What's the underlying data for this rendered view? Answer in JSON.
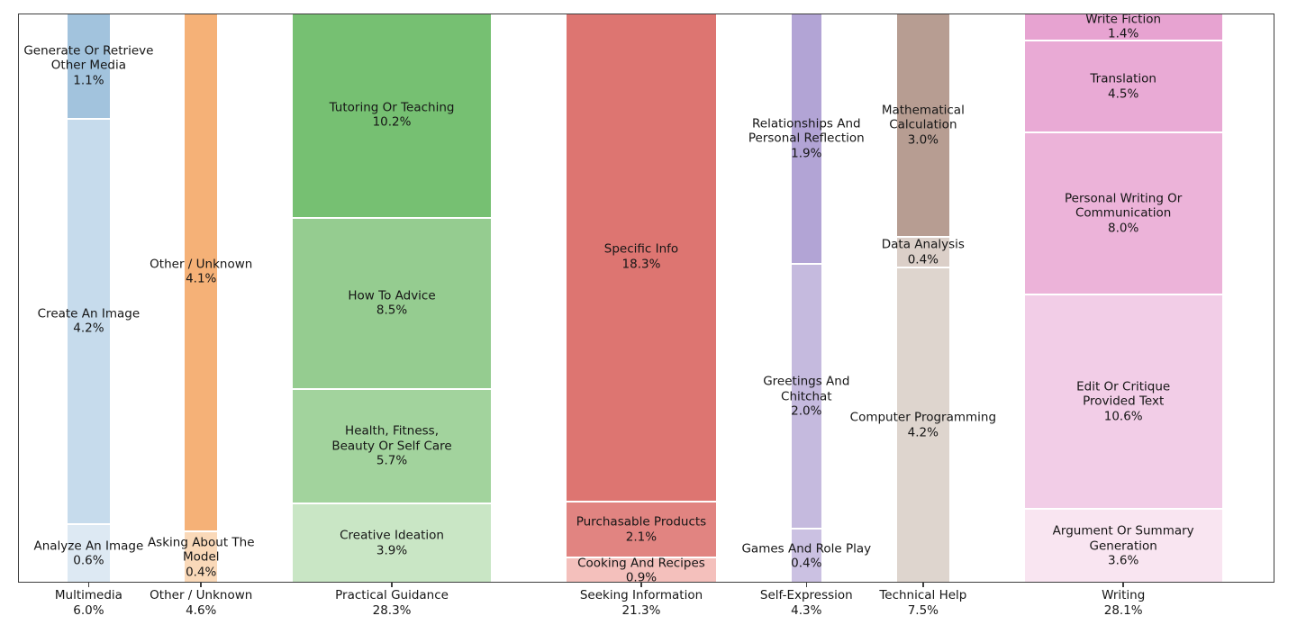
{
  "figure": {
    "background": "#ffffff",
    "text_color": "#161616",
    "spine_color": "#3e3e3e",
    "segment_gap_color": "#ffffff"
  },
  "chart_data": {
    "type": "bar",
    "variant": "marimekko-mosaic",
    "orientation": "vertical-stacked-normalized",
    "title": "",
    "xlabel": "",
    "ylabel": "",
    "grid": false,
    "legend": "none",
    "axis": {
      "frame": true,
      "bottom_ticks_at_bar_centers": true
    },
    "categories": [
      {
        "name": "Multimedia",
        "total": 6.0,
        "total_label": "6.0%",
        "segments": [
          {
            "label_lines": [
              "Generate Or Retrieve",
              "Other Media"
            ],
            "pct": 1.1,
            "pct_label": "1.1%",
            "color": "#a2c3dd"
          },
          {
            "label_lines": [
              "Create An Image"
            ],
            "pct": 4.2,
            "pct_label": "4.2%",
            "color": "#c6dbec"
          },
          {
            "label_lines": [
              "Analyze An Image"
            ],
            "pct": 0.6,
            "pct_label": "0.6%",
            "color": "#dde9f3"
          }
        ]
      },
      {
        "name": "Other / Unknown",
        "total": 4.6,
        "total_label": "4.6%",
        "segments": [
          {
            "label_lines": [
              "Other / Unknown"
            ],
            "pct": 4.1,
            "pct_label": "4.1%",
            "color": "#f5b177"
          },
          {
            "label_lines": [
              "Asking About The",
              "Model"
            ],
            "pct": 0.4,
            "pct_label": "0.4%",
            "color": "#fad9b9"
          }
        ]
      },
      {
        "name": "Practical Guidance",
        "total": 28.3,
        "total_label": "28.3%",
        "segments": [
          {
            "label_lines": [
              "Tutoring Or Teaching"
            ],
            "pct": 10.2,
            "pct_label": "10.2%",
            "color": "#76c072"
          },
          {
            "label_lines": [
              "How To Advice"
            ],
            "pct": 8.5,
            "pct_label": "8.5%",
            "color": "#95cc90"
          },
          {
            "label_lines": [
              "Health, Fitness,",
              "Beauty Or Self Care"
            ],
            "pct": 5.7,
            "pct_label": "5.7%",
            "color": "#a2d39d"
          },
          {
            "label_lines": [
              "Creative Ideation"
            ],
            "pct": 3.9,
            "pct_label": "3.9%",
            "color": "#c9e6c5"
          }
        ]
      },
      {
        "name": "Seeking Information",
        "total": 21.3,
        "total_label": "21.3%",
        "segments": [
          {
            "label_lines": [
              "Specific Info"
            ],
            "pct": 18.3,
            "pct_label": "18.3%",
            "color": "#dd7571"
          },
          {
            "label_lines": [
              "Purchasable Products"
            ],
            "pct": 2.1,
            "pct_label": "2.1%",
            "color": "#e18481"
          },
          {
            "label_lines": [
              "Cooking And Recipes"
            ],
            "pct": 0.9,
            "pct_label": "0.9%",
            "color": "#f4c0bc"
          }
        ]
      },
      {
        "name": "Self-Expression",
        "total": 4.3,
        "total_label": "4.3%",
        "segments": [
          {
            "label_lines": [
              "Relationships And",
              "Personal Reflection"
            ],
            "pct": 1.9,
            "pct_label": "1.9%",
            "color": "#b2a4d5"
          },
          {
            "label_lines": [
              "Greetings And",
              "Chitchat"
            ],
            "pct": 2.0,
            "pct_label": "2.0%",
            "color": "#c5bade"
          },
          {
            "label_lines": [
              "Games And Role Play"
            ],
            "pct": 0.4,
            "pct_label": "0.4%",
            "color": "#cbc1e2"
          }
        ]
      },
      {
        "name": "Technical Help",
        "total": 7.5,
        "total_label": "7.5%",
        "segments": [
          {
            "label_lines": [
              "Mathematical",
              "Calculation"
            ],
            "pct": 3.0,
            "pct_label": "3.0%",
            "color": "#b79d92"
          },
          {
            "label_lines": [
              "Data Analysis"
            ],
            "pct": 0.4,
            "pct_label": "0.4%",
            "color": "#dbcfc8"
          },
          {
            "label_lines": [
              "Computer Programming"
            ],
            "pct": 4.2,
            "pct_label": "4.2%",
            "color": "#ded5ce"
          }
        ]
      },
      {
        "name": "Writing",
        "total": 28.1,
        "total_label": "28.1%",
        "segments": [
          {
            "label_lines": [
              "Write Fiction"
            ],
            "pct": 1.4,
            "pct_label": "1.4%",
            "color": "#e7a3d1"
          },
          {
            "label_lines": [
              "Translation"
            ],
            "pct": 4.5,
            "pct_label": "4.5%",
            "color": "#e9aad5"
          },
          {
            "label_lines": [
              "Personal Writing Or",
              "Communication"
            ],
            "pct": 8.0,
            "pct_label": "8.0%",
            "color": "#ecb3d9"
          },
          {
            "label_lines": [
              "Edit Or Critique",
              "Provided Text"
            ],
            "pct": 10.6,
            "pct_label": "10.6%",
            "color": "#f2cde7"
          },
          {
            "label_lines": [
              "Argument Or Summary",
              "Generation"
            ],
            "pct": 3.6,
            "pct_label": "3.6%",
            "color": "#f9e5f1"
          }
        ]
      }
    ]
  }
}
